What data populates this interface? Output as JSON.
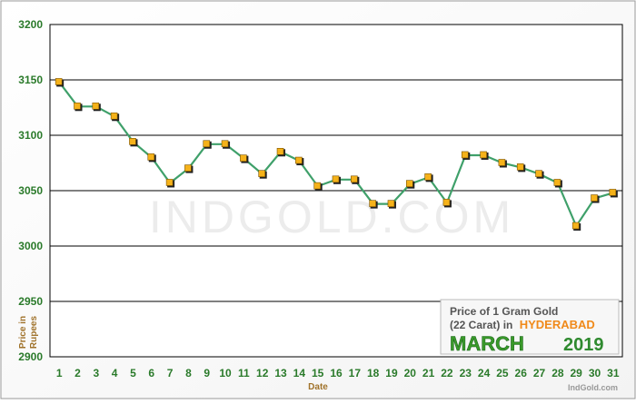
{
  "chart_data": {
    "type": "line",
    "title": "",
    "xlabel": "Date",
    "ylabel_lines": [
      "Price in",
      "Rupees"
    ],
    "x": [
      1,
      2,
      3,
      4,
      5,
      6,
      7,
      8,
      9,
      10,
      11,
      12,
      13,
      14,
      15,
      16,
      17,
      18,
      19,
      20,
      21,
      22,
      23,
      24,
      25,
      26,
      27,
      28,
      29,
      30,
      31
    ],
    "series": [
      {
        "values": [
          3148,
          3126,
          3126,
          3117,
          3094,
          3080,
          3057,
          3070,
          3092,
          3092,
          3079,
          3065,
          3085,
          3077,
          3054,
          3060,
          3060,
          3038,
          3038,
          3056,
          3062,
          3039,
          3082,
          3082,
          3075,
          3071,
          3065,
          3057,
          3018,
          3043,
          3048
        ]
      }
    ],
    "ylim": [
      2900,
      3200
    ],
    "yticks": [
      "3200",
      "3150",
      "3100",
      "3050",
      "3000",
      "2950",
      "2900"
    ],
    "grid": "horizontal",
    "colors": {
      "line": "#3fa06a",
      "marker_fill": "#f5b21a",
      "marker_edge": "#000000",
      "axis_text": "#2a7a2a",
      "date_text": "#a0722a",
      "month_text": "#3a9a2a",
      "city_text": "#f08a1a"
    }
  },
  "legend_box": {
    "line1": "Price of 1 Gram Gold",
    "line2_prefix": "(22 Carat) in",
    "city": "HYDERABAD",
    "month": "MARCH",
    "year": "2019",
    "site": "IndGold.com"
  },
  "watermark": "IndGold.com"
}
